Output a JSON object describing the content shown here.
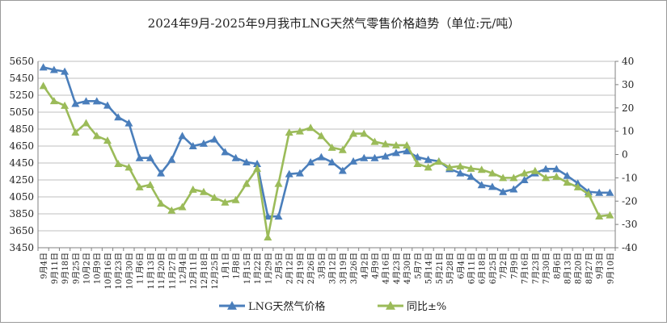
{
  "chart_data": {
    "type": "line",
    "title": "2024年9月-2025年9月我市LNG天然气零售价格趋势（单位:元/吨）",
    "categories": [
      "9月4日",
      "9月11日",
      "9月18日",
      "9月25日",
      "10月2日",
      "10月9日",
      "10月16日",
      "10月23日",
      "10月30日",
      "11月6日",
      "11月13日",
      "11月20日",
      "11月27日",
      "12月4日",
      "12月11日",
      "12月18日",
      "12月25日",
      "1月1日",
      "1月8日",
      "1月15日",
      "1月22日",
      "1月29日",
      "2月5日",
      "2月12日",
      "2月19日",
      "2月26日",
      "3月5日",
      "3月12日",
      "3月19日",
      "3月26日",
      "4月2日",
      "4月9日",
      "4月16日",
      "4月23日",
      "4月30日",
      "5月7日",
      "5月14日",
      "5月21日",
      "5月28日",
      "6月4日",
      "6月11日",
      "6月18日",
      "6月25日",
      "7月2日",
      "7月9日",
      "7月16日",
      "7月23日",
      "7月30日",
      "8月6日",
      "8月13日",
      "8月20日",
      "8月27日",
      "9月3日",
      "9月10日"
    ],
    "x_tick_labels": [
      "9月4日",
      "9月11日",
      "9月18日",
      "9月25日",
      "10月2日",
      "10月9日",
      "10月16日",
      "10月23日",
      "10月30日",
      "11月6日",
      "11月13日",
      "11月20日",
      "11月27日",
      "12月4日",
      "12月11日",
      "12月18日",
      "12月25日",
      "1月1日",
      "1月8日",
      "1月15日",
      "1月22日",
      "1月29日",
      "2月5日",
      "2月12日",
      "2月19日",
      "2月26日",
      "3月5日",
      "3月12日",
      "3月19日",
      "3月26日",
      "4月2日",
      "4月9日",
      "4月16日",
      "4月23日",
      "4月30日",
      "5月7日",
      "5月14日",
      "5月21日",
      "5月28日",
      "6月4日",
      "6月11日",
      "6月18日",
      "6月25日",
      "7月2日",
      "7月9日",
      "7月16日",
      "7月23日",
      "7月30日",
      "8月6日",
      "8月13日",
      "8月20日",
      "8月27日",
      "9月3日",
      "9月10日"
    ],
    "series": [
      {
        "name": "LNG天然气价格",
        "axis": "left",
        "color": "#4a7ebb",
        "values": [
          5580,
          5550,
          5530,
          5150,
          5180,
          5180,
          5130,
          4990,
          4920,
          4510,
          4510,
          4330,
          4490,
          4770,
          4650,
          4680,
          4730,
          4580,
          4510,
          4460,
          4440,
          3820,
          3820,
          4320,
          4330,
          4460,
          4520,
          4460,
          4360,
          4470,
          4510,
          4510,
          4530,
          4570,
          4590,
          4520,
          4490,
          4470,
          4380,
          4330,
          4290,
          4190,
          4170,
          4110,
          4140,
          4250,
          4330,
          4380,
          4380,
          4300,
          4210,
          4110,
          4100,
          4100
        ]
      },
      {
        "name": "同比±%",
        "axis": "right",
        "color": "#9bbb59",
        "values": [
          29.5,
          23,
          21,
          9.5,
          13.5,
          8,
          6,
          -4,
          -5.5,
          -14,
          -13,
          -21,
          -24,
          -22.5,
          -15,
          -16,
          -18.5,
          -20.5,
          -19.5,
          -12.5,
          -6,
          -35.5,
          -12.5,
          9.5,
          10,
          11.5,
          8,
          3,
          2,
          9,
          9,
          5.5,
          4.5,
          4,
          4,
          -4,
          -5.5,
          -3,
          -5.5,
          -5,
          -6,
          -6.5,
          -8,
          -10,
          -10,
          -8,
          -7,
          -10,
          -9.5,
          -12,
          -14,
          -17,
          -26.5,
          -26
        ]
      }
    ],
    "y_left": {
      "min": 3450,
      "max": 5650,
      "ticks": [
        3450,
        3650,
        3850,
        4050,
        4250,
        4450,
        4650,
        4850,
        5050,
        5250,
        5450,
        5650
      ]
    },
    "y_right": {
      "min": -40,
      "max": 40,
      "ticks": [
        -40,
        -30,
        -20,
        -10,
        0,
        10,
        20,
        30,
        40
      ]
    },
    "legend": {
      "position": "bottom",
      "items": [
        "LNG天然气价格",
        "同比±%"
      ]
    }
  }
}
